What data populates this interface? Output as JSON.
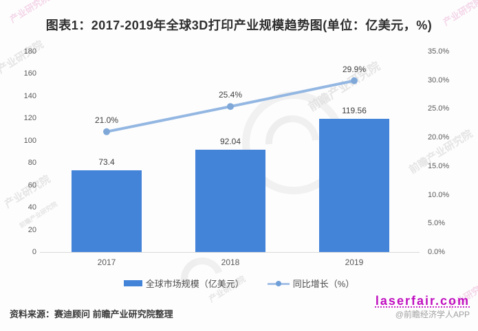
{
  "title": "图表1：2017-2019年全球3D打印产业规模趋势图(单位：亿美元，%)",
  "chart_data": {
    "type": "bar",
    "subtype": "bar-with-line-overlay",
    "categories": [
      "2017",
      "2018",
      "2019"
    ],
    "series": [
      {
        "name": "全球市场规模（亿美元）",
        "type": "bar",
        "axis": "left",
        "values": [
          73.4,
          92.04,
          119.56
        ],
        "labels": [
          "73.4",
          "92.04",
          "119.56"
        ]
      },
      {
        "name": "同比增长（%）",
        "type": "line",
        "axis": "right",
        "values": [
          21.0,
          25.4,
          29.9
        ],
        "labels": [
          "21.0%",
          "25.4%",
          "29.9%"
        ]
      }
    ],
    "left_axis": {
      "min": 0,
      "max": 180,
      "step": 20,
      "ticks": [
        "0",
        "20",
        "40",
        "60",
        "80",
        "100",
        "120",
        "140",
        "160",
        "180"
      ]
    },
    "right_axis": {
      "min": 0,
      "max": 35,
      "step": 5,
      "ticks": [
        "0.0%",
        "5.0%",
        "10.0%",
        "15.0%",
        "20.0%",
        "25.0%",
        "30.0%",
        "35.0%"
      ]
    },
    "grid": false,
    "legend_position": "bottom"
  },
  "legend": {
    "bar_label": "全球市场规模（亿美元）",
    "line_label": "同比增长（%）"
  },
  "footer": {
    "source": "资料来源：赛迪顾问 前瞻产业研究院整理",
    "site": "laserfair.com",
    "credit": "@前瞻经济学人APP"
  },
  "watermark": {
    "text": "前瞻产业研究院",
    "text_short": "产业研究院"
  },
  "colors": {
    "bar": "#4384d9",
    "line": "#93b7e2",
    "marker": "#7fa8d9",
    "axis_line": "#d9d9d9",
    "site_text": "#c00fc0"
  }
}
